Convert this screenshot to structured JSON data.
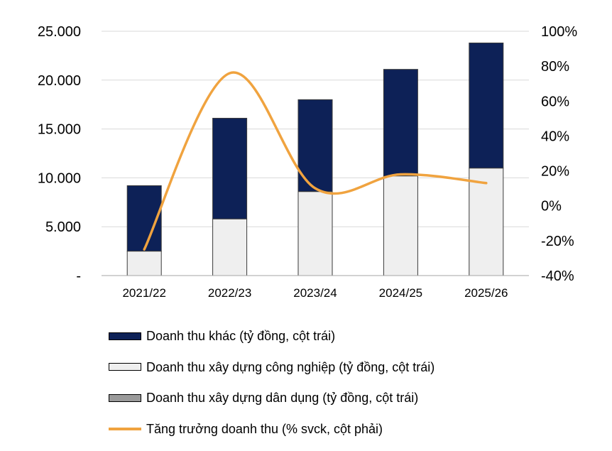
{
  "colors": {
    "other": "#0d2157",
    "industrial": "#efefef",
    "residential": "#9a9a9a",
    "growth": "#f0a33f",
    "grid": "#d9d9d9",
    "axis": "#a6a6a6"
  },
  "chart_data": {
    "type": "bar",
    "stacked": true,
    "categories": [
      "2021/22",
      "2022/23",
      "2023/24",
      "2024/25",
      "2025/26"
    ],
    "series": [
      {
        "name": "Doanh thu xây dựng dân dụng (tỷ đồng, cột trái)",
        "axis": "left",
        "values": [
          0,
          0,
          0,
          0,
          0
        ]
      },
      {
        "name": "Doanh thu xây dựng công nghiệp (tỷ đồng, cột trái)",
        "axis": "left",
        "values": [
          2500,
          5800,
          8600,
          10200,
          11000
        ]
      },
      {
        "name": "Doanh thu khác (tỷ đồng, cột trái)",
        "axis": "left",
        "values": [
          6700,
          10300,
          9400,
          10900,
          12800
        ]
      },
      {
        "name": "Tăng trưởng doanh thu (% svck, cột phải)",
        "axis": "right",
        "type": "line",
        "values": [
          -25,
          76,
          10,
          18,
          13
        ]
      }
    ],
    "y_left": {
      "ylim": [
        0,
        25000
      ],
      "ticks": [
        0,
        5000,
        10000,
        15000,
        20000,
        25000
      ],
      "tick_labels": [
        "-",
        "5.000",
        "10.000",
        "15.000",
        "20.000",
        "25.000"
      ]
    },
    "y_right": {
      "ylim": [
        -40,
        100
      ],
      "ticks": [
        -40,
        -20,
        0,
        20,
        40,
        60,
        80,
        100
      ],
      "tick_labels": [
        "-40%",
        "-20%",
        "0%",
        "20%",
        "40%",
        "60%",
        "80%",
        "100%"
      ]
    },
    "title": "",
    "xlabel": "",
    "ylabel": "",
    "grid": true,
    "legend": [
      {
        "label": "Doanh thu khác (tỷ đồng, cột trái)",
        "kind": "box",
        "color_key": "other"
      },
      {
        "label": "Doanh thu xây dựng công nghiệp (tỷ đồng, cột trái)",
        "kind": "box",
        "color_key": "industrial"
      },
      {
        "label": "Doanh thu xây dựng dân dụng (tỷ đồng, cột trái)",
        "kind": "box",
        "color_key": "residential"
      },
      {
        "label": "Tăng trưởng doanh thu (% svck, cột phải)",
        "kind": "line",
        "color_key": "growth"
      }
    ],
    "legend_position": "bottom-left"
  }
}
